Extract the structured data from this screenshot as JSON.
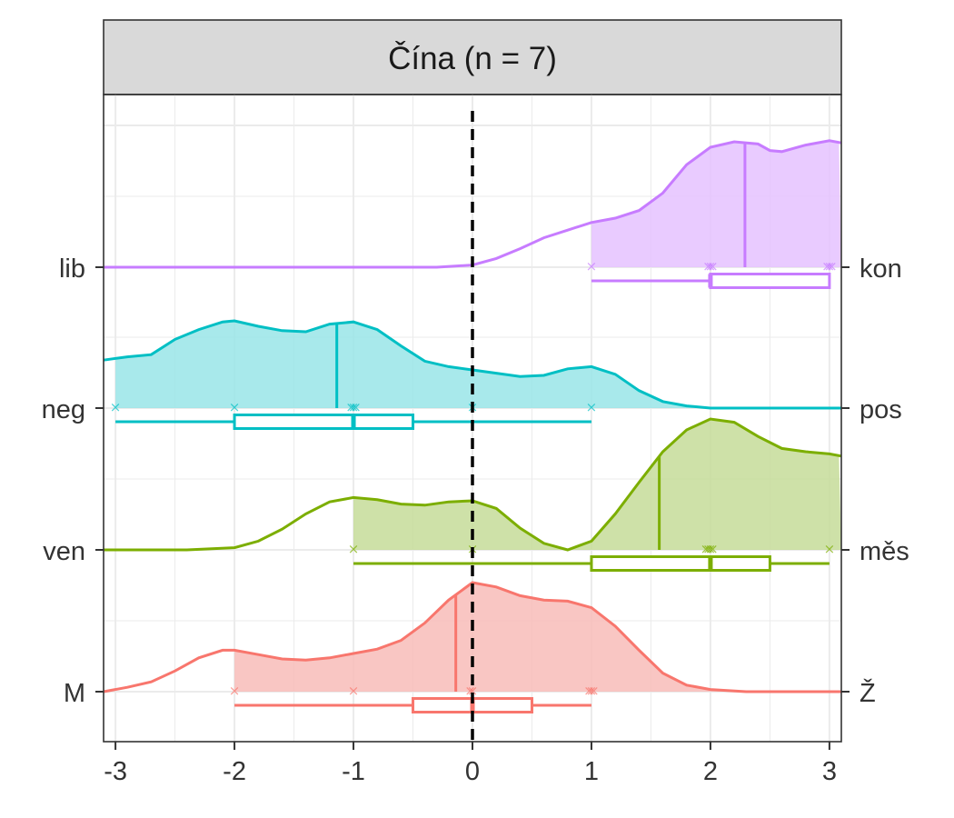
{
  "chart_data": {
    "type": "ridgeline-density-boxplot",
    "panel_title": "Čína (n = 7)",
    "xlim": [
      -3.1,
      3.1
    ],
    "x_ticks": [
      -3,
      -2,
      -1,
      0,
      1,
      2,
      3
    ],
    "x_tick_labels": [
      "-3",
      "-2",
      "-1",
      "0",
      "1",
      "2",
      "3"
    ],
    "reference_line_x": 0,
    "grid": true,
    "series": [
      {
        "left_label": "M",
        "right_label": "Ž",
        "color": "#F8766D",
        "fill": "#F8BCB8",
        "values": [
          -2,
          -1,
          0,
          0,
          1,
          1,
          1
        ],
        "mean": -0.14,
        "box": {
          "min": -2,
          "q1": -0.5,
          "median": 0,
          "q3": 0.5,
          "max": 1
        },
        "density": [
          [
            -3.1,
            0.0
          ],
          [
            -2.9,
            0.04
          ],
          [
            -2.7,
            0.09
          ],
          [
            -2.5,
            0.19
          ],
          [
            -2.3,
            0.31
          ],
          [
            -2.1,
            0.38
          ],
          [
            -2.0,
            0.38
          ],
          [
            -1.8,
            0.34
          ],
          [
            -1.6,
            0.3
          ],
          [
            -1.4,
            0.29
          ],
          [
            -1.2,
            0.31
          ],
          [
            -1.0,
            0.35
          ],
          [
            -0.8,
            0.39
          ],
          [
            -0.6,
            0.47
          ],
          [
            -0.4,
            0.63
          ],
          [
            -0.2,
            0.84
          ],
          [
            0.0,
            1.0
          ],
          [
            0.2,
            0.96
          ],
          [
            0.4,
            0.88
          ],
          [
            0.6,
            0.84
          ],
          [
            0.8,
            0.83
          ],
          [
            1.0,
            0.77
          ],
          [
            1.2,
            0.6
          ],
          [
            1.4,
            0.38
          ],
          [
            1.6,
            0.17
          ],
          [
            1.8,
            0.06
          ],
          [
            2.0,
            0.02
          ],
          [
            2.3,
            0.0
          ],
          [
            3.1,
            0.0
          ]
        ]
      },
      {
        "left_label": "ven",
        "right_label": "měs",
        "color": "#7CAE00",
        "fill": "#C5DC99",
        "values": [
          -1,
          0,
          2,
          2,
          2,
          2,
          3
        ],
        "mean": 1.57,
        "box": {
          "min": -1,
          "q1": 1,
          "median": 2,
          "q3": 2.5,
          "max": 3
        },
        "density": [
          [
            -3.1,
            0.0
          ],
          [
            -2.4,
            0.0
          ],
          [
            -2.0,
            0.02
          ],
          [
            -1.8,
            0.08
          ],
          [
            -1.6,
            0.19
          ],
          [
            -1.4,
            0.33
          ],
          [
            -1.2,
            0.44
          ],
          [
            -1.0,
            0.48
          ],
          [
            -0.8,
            0.46
          ],
          [
            -0.6,
            0.42
          ],
          [
            -0.4,
            0.41
          ],
          [
            -0.2,
            0.44
          ],
          [
            0.0,
            0.45
          ],
          [
            0.2,
            0.38
          ],
          [
            0.4,
            0.2
          ],
          [
            0.6,
            0.06
          ],
          [
            0.8,
            0.0
          ],
          [
            1.0,
            0.08
          ],
          [
            1.2,
            0.33
          ],
          [
            1.4,
            0.62
          ],
          [
            1.6,
            0.9
          ],
          [
            1.8,
            1.1
          ],
          [
            2.0,
            1.2
          ],
          [
            2.2,
            1.17
          ],
          [
            2.4,
            1.04
          ],
          [
            2.6,
            0.93
          ],
          [
            2.8,
            0.9
          ],
          [
            3.0,
            0.88
          ],
          [
            3.1,
            0.86
          ]
        ]
      },
      {
        "left_label": "neg",
        "right_label": "pos",
        "color": "#00BFC4",
        "fill": "#99E5E7",
        "values": [
          -3,
          -2,
          -1,
          -1,
          -1,
          0,
          1
        ],
        "mean": -1.14,
        "box": {
          "min": -3,
          "q1": -2,
          "median": -1,
          "q3": -0.5,
          "max": 1
        },
        "density": [
          [
            -3.1,
            0.44
          ],
          [
            -2.9,
            0.47
          ],
          [
            -2.7,
            0.49
          ],
          [
            -2.5,
            0.63
          ],
          [
            -2.3,
            0.72
          ],
          [
            -2.1,
            0.79
          ],
          [
            -2.0,
            0.8
          ],
          [
            -1.8,
            0.75
          ],
          [
            -1.6,
            0.71
          ],
          [
            -1.4,
            0.7
          ],
          [
            -1.2,
            0.77
          ],
          [
            -1.0,
            0.79
          ],
          [
            -0.8,
            0.72
          ],
          [
            -0.6,
            0.57
          ],
          [
            -0.4,
            0.43
          ],
          [
            -0.2,
            0.38
          ],
          [
            0.0,
            0.35
          ],
          [
            0.2,
            0.32
          ],
          [
            0.4,
            0.29
          ],
          [
            0.6,
            0.3
          ],
          [
            0.8,
            0.36
          ],
          [
            1.0,
            0.38
          ],
          [
            1.2,
            0.31
          ],
          [
            1.4,
            0.16
          ],
          [
            1.6,
            0.06
          ],
          [
            1.8,
            0.02
          ],
          [
            2.0,
            0.0
          ],
          [
            3.1,
            0.0
          ]
        ]
      },
      {
        "left_label": "lib",
        "right_label": "kon",
        "color": "#C77CFF",
        "fill": "#E5C2FF",
        "values": [
          1,
          2,
          2,
          2,
          3,
          3,
          3
        ],
        "mean": 2.29,
        "box": {
          "min": 1,
          "q1": 2,
          "median": 2,
          "q3": 3,
          "max": 3
        },
        "density": [
          [
            -3.1,
            0.0
          ],
          [
            -0.3,
            0.0
          ],
          [
            0.0,
            0.02
          ],
          [
            0.2,
            0.08
          ],
          [
            0.4,
            0.17
          ],
          [
            0.6,
            0.27
          ],
          [
            0.8,
            0.34
          ],
          [
            1.0,
            0.41
          ],
          [
            1.2,
            0.45
          ],
          [
            1.4,
            0.52
          ],
          [
            1.6,
            0.68
          ],
          [
            1.8,
            0.94
          ],
          [
            2.0,
            1.1
          ],
          [
            2.2,
            1.15
          ],
          [
            2.4,
            1.13
          ],
          [
            2.5,
            1.07
          ],
          [
            2.6,
            1.06
          ],
          [
            2.8,
            1.12
          ],
          [
            3.0,
            1.16
          ],
          [
            3.1,
            1.14
          ]
        ]
      }
    ]
  }
}
